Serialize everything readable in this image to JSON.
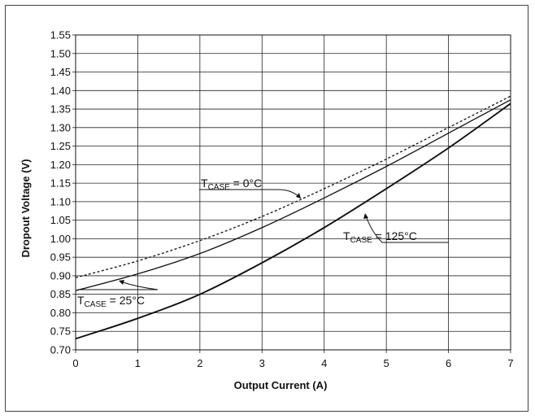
{
  "chart_data": {
    "type": "line",
    "xlabel": "Output Current (A)",
    "ylabel": "Dropout Voltage (V)",
    "xlim": [
      0,
      7
    ],
    "ylim": [
      0.7,
      1.55
    ],
    "xticks": [
      0,
      1,
      2,
      3,
      4,
      5,
      6,
      7
    ],
    "yticks": [
      0.7,
      0.75,
      0.8,
      0.85,
      0.9,
      0.95,
      1.0,
      1.05,
      1.1,
      1.15,
      1.2,
      1.25,
      1.3,
      1.35,
      1.4,
      1.45,
      1.5,
      1.55
    ],
    "grid": true,
    "series": [
      {
        "name": "TCASE = 0°C",
        "style": "dashed",
        "x": [
          0,
          1,
          2,
          3,
          4,
          5,
          6,
          7
        ],
        "y": [
          0.895,
          0.94,
          0.995,
          1.06,
          1.135,
          1.215,
          1.3,
          1.385
        ]
      },
      {
        "name": "TCASE = 25°C",
        "style": "solid",
        "x": [
          0,
          1,
          2,
          3,
          4,
          5,
          6,
          7
        ],
        "y": [
          0.86,
          0.905,
          0.96,
          1.03,
          1.11,
          1.195,
          1.285,
          1.375
        ]
      },
      {
        "name": "TCASE = 125°C",
        "style": "solid-bold",
        "x": [
          0,
          1,
          2,
          3,
          4,
          5,
          6,
          7
        ],
        "y": [
          0.73,
          0.785,
          0.85,
          0.935,
          1.03,
          1.135,
          1.245,
          1.365
        ]
      }
    ],
    "annotations": [
      {
        "main": "T",
        "sub": "CASE",
        "rest": " = 0°C"
      },
      {
        "main": "T",
        "sub": "CASE",
        "rest": " = 25°C"
      },
      {
        "main": "T",
        "sub": "CASE",
        "rest": " = 125°C"
      }
    ]
  }
}
